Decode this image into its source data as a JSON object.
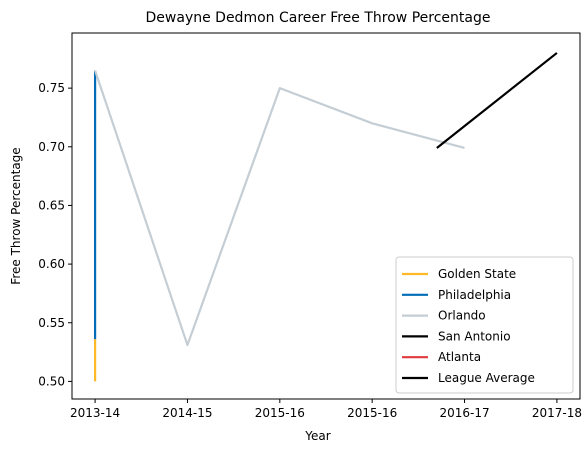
{
  "chart_data": {
    "type": "line",
    "title": "Dewayne Dedmon Career Free Throw Percentage",
    "xlabel": "Year",
    "ylabel": "Free Throw Percentage",
    "x_ticks": [
      "2013-14",
      "2014-15",
      "2015-16",
      "2015-16",
      "2016-17",
      "2017-18"
    ],
    "xlim": [
      -0.25,
      5.25
    ],
    "ylim": [
      0.485,
      0.797
    ],
    "y_ticks": [
      "0.50",
      "0.55",
      "0.60",
      "0.65",
      "0.70",
      "0.75"
    ],
    "y_tick_values": [
      0.5,
      0.55,
      0.6,
      0.65,
      0.7,
      0.75
    ],
    "grid": false,
    "legend_position": "lower-right",
    "series": [
      {
        "name": "Golden State",
        "color": "#FDB927",
        "x": [
          0,
          0
        ],
        "y": [
          0.5,
          0.536
        ]
      },
      {
        "name": "Philadelphia",
        "color": "#006BB6",
        "x": [
          0,
          0
        ],
        "y": [
          0.536,
          0.765
        ]
      },
      {
        "name": "Orlando",
        "color": "#C4CED4",
        "x": [
          0,
          1,
          2,
          3,
          4
        ],
        "y": [
          0.765,
          0.531,
          0.75,
          0.72,
          0.699
        ]
      },
      {
        "name": "San Antonio",
        "color": "#000000",
        "x": [
          3.7,
          5
        ],
        "y": [
          0.699,
          0.78
        ]
      },
      {
        "name": "Atlanta",
        "color": "#E03A3E",
        "x": [],
        "y": []
      },
      {
        "name": "League Average",
        "color": "#000000",
        "x": [],
        "y": []
      }
    ]
  }
}
